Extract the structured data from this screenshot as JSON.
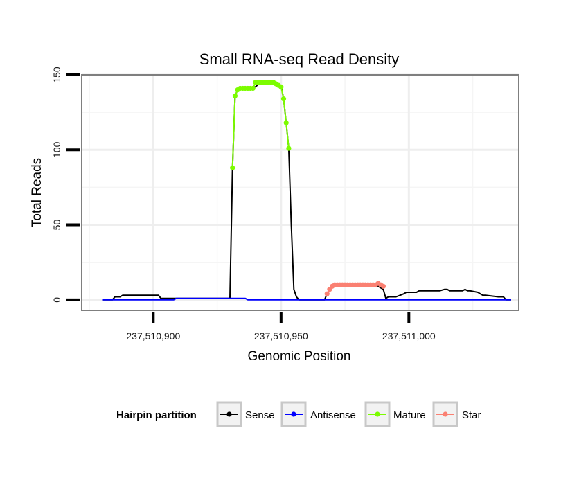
{
  "chart_data": {
    "type": "line",
    "title": "Small RNA-seq Read Density",
    "xlabel": "Genomic Position",
    "ylabel": "Total Reads",
    "xlim": [
      237510872,
      237511043
    ],
    "ylim": [
      -7,
      150
    ],
    "x_ticks": [
      237510900,
      237510950,
      237511000
    ],
    "x_tick_labels": [
      "237,510,900",
      "237,510,950",
      "237,511,000"
    ],
    "y_ticks": [
      0,
      50,
      100,
      150
    ],
    "y_tick_labels": [
      "0",
      "50",
      "100",
      "150"
    ],
    "grid": true,
    "legend": {
      "title": "Hairpin partition",
      "position": "bottom",
      "entries": [
        {
          "label": "Sense",
          "color": "#000000"
        },
        {
          "label": "Antisense",
          "color": "#0000ff"
        },
        {
          "label": "Mature",
          "color": "#7cfc00"
        },
        {
          "label": "Star",
          "color": "#fa8072"
        }
      ]
    },
    "series": [
      {
        "name": "Sense",
        "color": "#000000",
        "markers": false,
        "x": [
          237510880,
          237510884,
          237510885,
          237510886,
          237510887,
          237510888,
          237510896,
          237510900,
          237510902,
          237510903,
          237510904,
          237510905,
          237510918,
          237510930,
          237510931,
          237510932,
          237510933,
          237510934,
          237510935,
          237510936,
          237510938,
          237510940,
          237510942,
          237510945,
          237510948,
          237510950,
          237510951,
          237510952,
          237510953,
          237510954,
          237510955,
          237510956,
          237510957,
          237510960,
          237510965,
          237510967,
          237510968,
          237510969,
          237510970,
          237510986,
          237510987,
          237510988,
          237510989,
          237510990,
          237510991,
          237510992,
          237510995,
          237510998,
          237510999,
          237511003,
          237511004,
          237511005,
          237511010,
          237511012,
          237511014,
          237511015,
          237511016,
          237511017,
          237511019,
          237511021,
          237511022,
          237511023,
          237511024,
          237511027,
          237511028,
          237511029,
          237511030,
          237511035,
          237511036,
          237511037,
          237511038,
          237511040
        ],
        "values": [
          0,
          0,
          2,
          2,
          2,
          3,
          3,
          3,
          3,
          1,
          1,
          1,
          1,
          1,
          88,
          136,
          140,
          141,
          141,
          141,
          141,
          142,
          145,
          145,
          144,
          143,
          134,
          118,
          101,
          50,
          7,
          2,
          0,
          0,
          0,
          0,
          4,
          7,
          9,
          10,
          10,
          9,
          8,
          7,
          1,
          2,
          2,
          4,
          5,
          5,
          6,
          6,
          6,
          6,
          7,
          7,
          6,
          6,
          6,
          6,
          7,
          6,
          6,
          5,
          4,
          3,
          3,
          2,
          2,
          2,
          0,
          0
        ]
      },
      {
        "name": "Antisense",
        "color": "#0000ff",
        "markers": false,
        "x": [
          237510880,
          237510908,
          237510909,
          237510917,
          237510930,
          237510931,
          237510935,
          237510936,
          237510937,
          237510960,
          237510990,
          237511040
        ],
        "values": [
          0,
          0,
          1,
          1,
          1,
          1,
          1,
          1,
          0,
          0,
          0,
          0
        ]
      },
      {
        "name": "Mature",
        "color": "#7cfc00",
        "markers": true,
        "x": [
          237510931,
          237510932,
          237510933,
          237510934,
          237510935,
          237510936,
          237510937,
          237510938,
          237510939,
          237510940,
          237510941,
          237510942,
          237510943,
          237510944,
          237510945,
          237510946,
          237510947,
          237510948,
          237510949,
          237510950,
          237510951,
          237510952,
          237510953
        ],
        "values": [
          88,
          136,
          140,
          141,
          141,
          141,
          141,
          141,
          141,
          145,
          145,
          145,
          145,
          145,
          145,
          145,
          145,
          144,
          143,
          142,
          134,
          118,
          101
        ]
      },
      {
        "name": "Star",
        "color": "#fa8072",
        "markers": true,
        "x": [
          237510968,
          237510969,
          237510970,
          237510971,
          237510972,
          237510973,
          237510974,
          237510975,
          237510976,
          237510977,
          237510978,
          237510979,
          237510980,
          237510981,
          237510982,
          237510983,
          237510984,
          237510985,
          237510986,
          237510987,
          237510988,
          237510989,
          237510990
        ],
        "values": [
          4,
          7,
          9,
          10,
          10,
          10,
          10,
          10,
          10,
          10,
          10,
          10,
          10,
          10,
          10,
          10,
          10,
          10,
          10,
          10,
          11,
          10,
          9
        ]
      }
    ]
  }
}
